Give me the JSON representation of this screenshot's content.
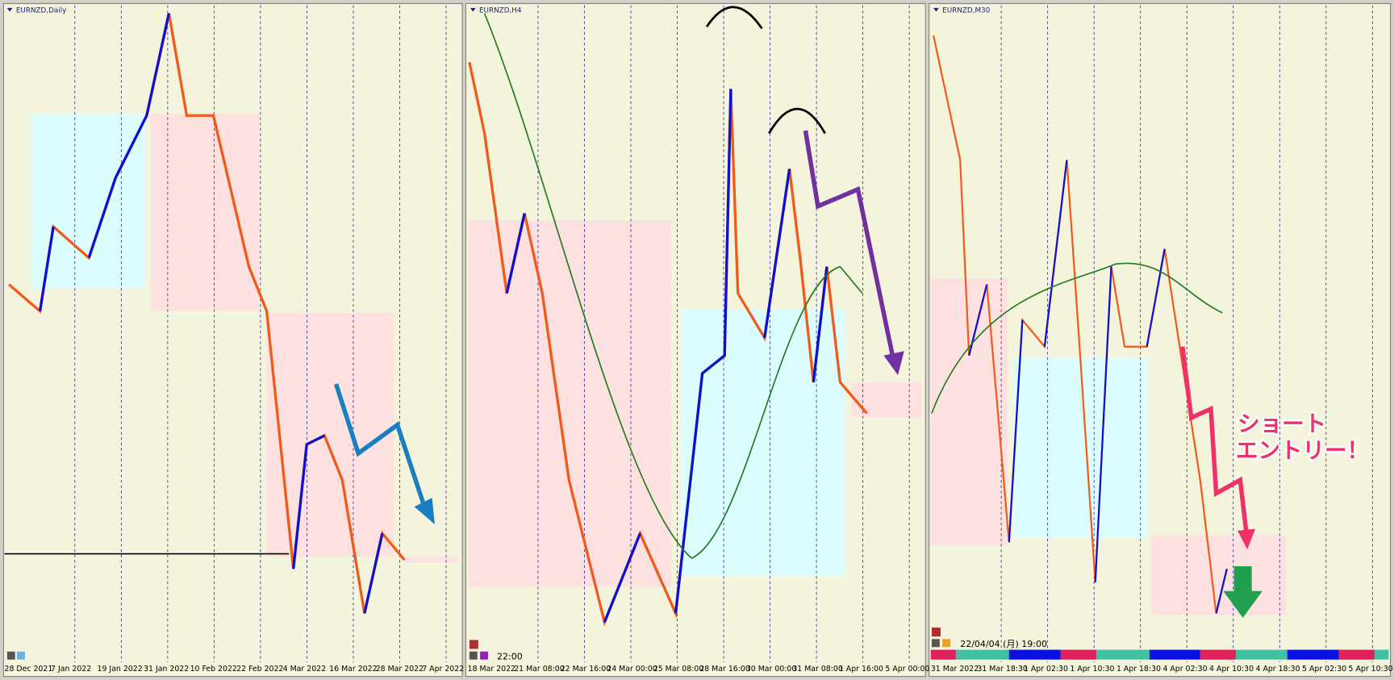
{
  "panels": [
    {
      "title": "EURNZD,Daily",
      "x_labels": [
        "28 Dec 2021",
        "7 Jan 2022",
        "19 Jan 2022",
        "31 Jan 2022",
        "10 Feb 2022",
        "22 Feb 2022",
        "4 Mar 2022",
        "16 Mar 2022",
        "28 Mar 2022",
        "7 Apr 2022"
      ]
    },
    {
      "title": "EURNZD,H4",
      "x_labels": [
        "18 Mar 2022",
        "21 Mar 08:00",
        "22 Mar 16:00",
        "24 Mar 00:00",
        "25 Mar 08:00",
        "28 Mar 16:00",
        "30 Mar 00:00",
        "31 Mar 08:00",
        "1 Apr 16:00",
        "5 Apr 00:00"
      ]
    },
    {
      "title": "EURNZD,M30",
      "x_labels": [
        "31 Mar 2022",
        "31 Mar 18:30",
        "1 Apr 02:30",
        "1 Apr 10:30",
        "1 Apr 18:30",
        "4 Apr 02:30",
        "4 Apr 10:30",
        "4 Apr 18:30",
        "5 Apr 02:30",
        "5 Apr 10:30"
      ]
    }
  ],
  "time_label": "22:00",
  "date_label": "22/04/04 (月) 19:00",
  "annotation": [
    "ショート",
    "エントリー！"
  ]
}
